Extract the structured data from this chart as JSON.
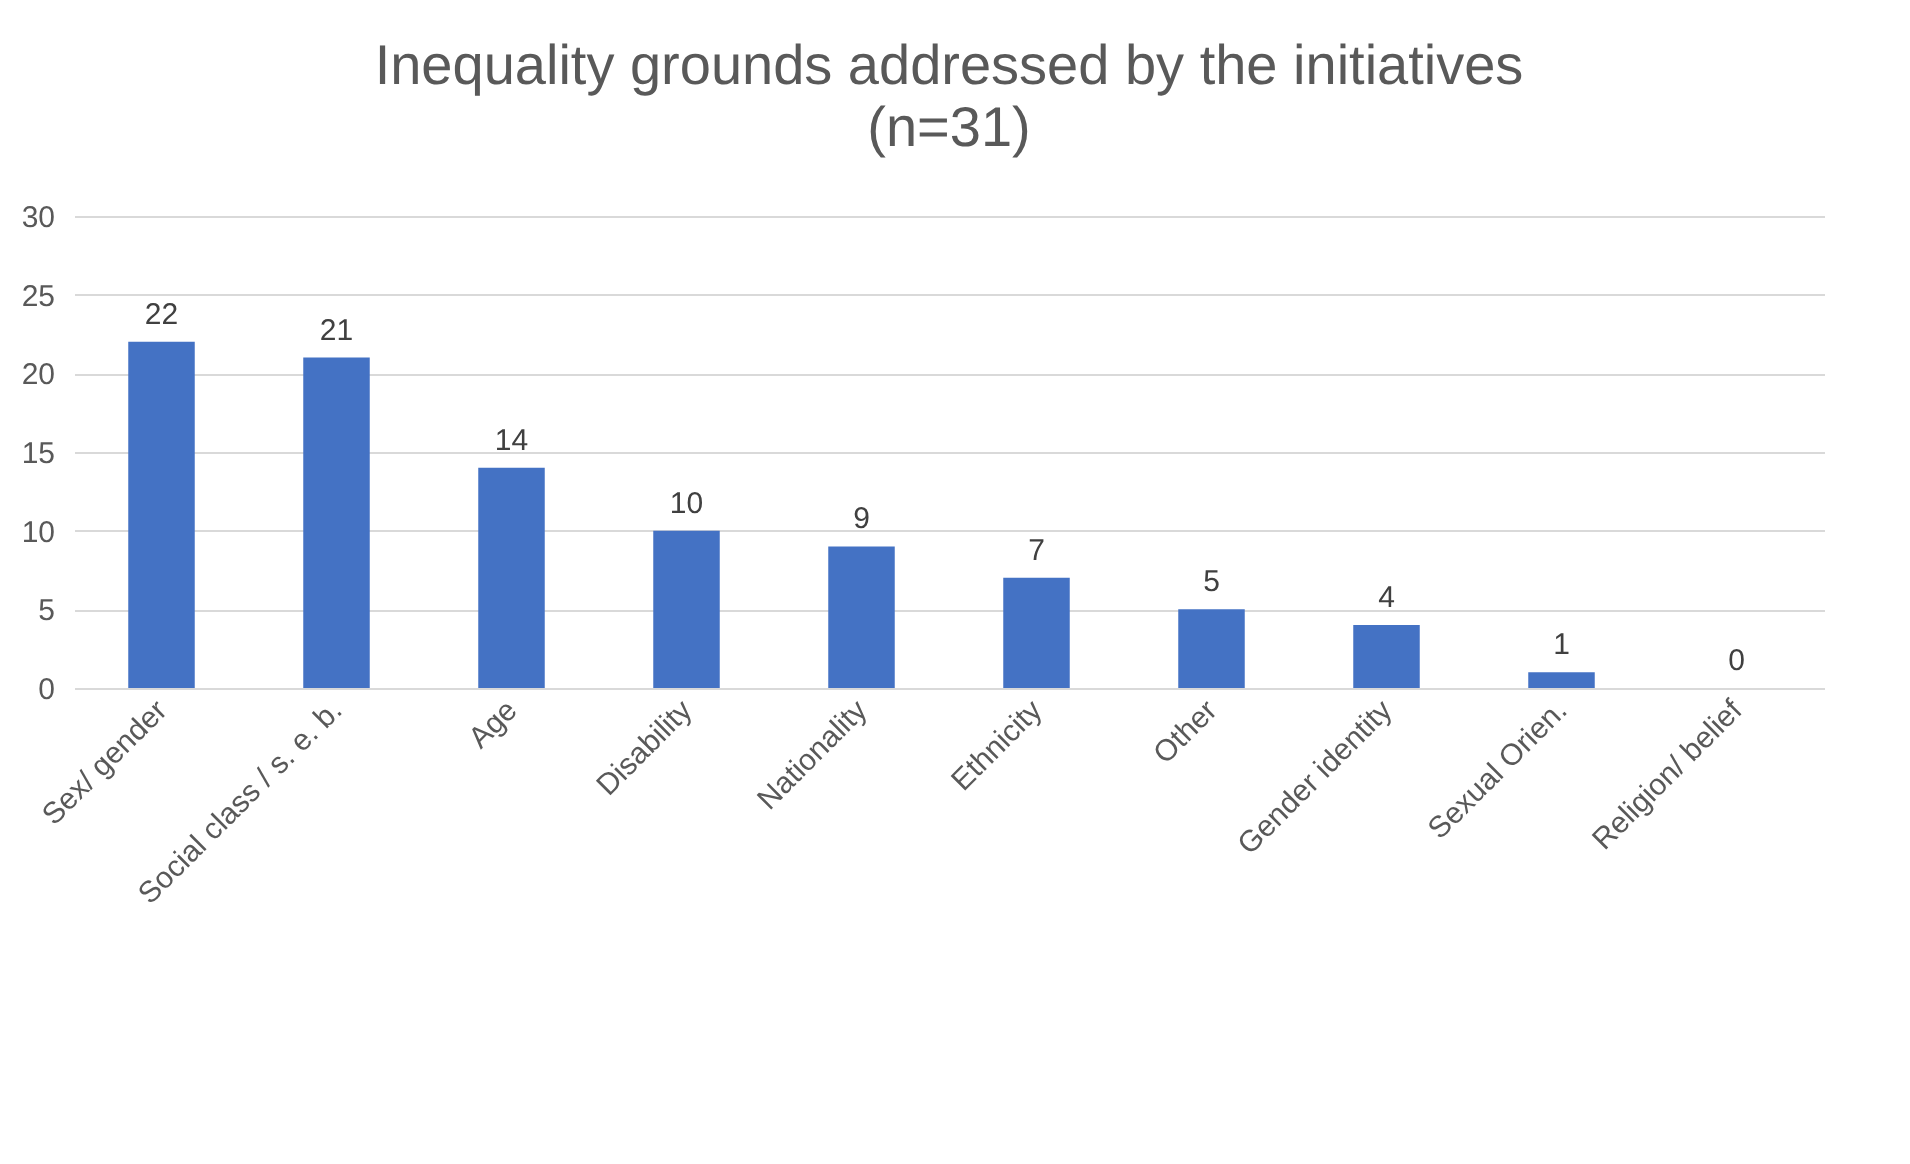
{
  "chart_data": {
    "type": "bar",
    "title": "Inequality grounds addressed by the initiatives",
    "subtitle": "(n=31)",
    "categories": [
      "Sex/ gender",
      "Social class / s. e. b.",
      "Age",
      "Disability",
      "Nationality",
      "Ethnicity",
      "Other",
      "Gender identity",
      "Sexual Orien.",
      "Religion/ belief"
    ],
    "values": [
      22,
      21,
      14,
      10,
      9,
      7,
      5,
      4,
      1,
      0
    ],
    "color": "#4472c4",
    "ylim": [
      0,
      30
    ],
    "yticks": [
      0,
      5,
      10,
      15,
      20,
      25,
      30
    ],
    "grid": "y",
    "data_labels": true
  }
}
